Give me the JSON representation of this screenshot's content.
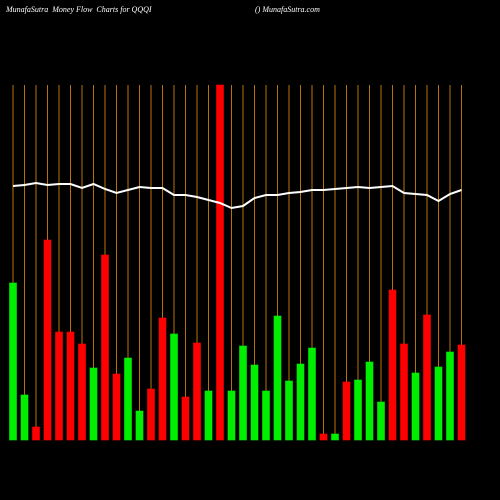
{
  "chart_data": {
    "type": "bar",
    "title": "MunafaSutra  Money Flow  Charts for QQQI",
    "subtitle": "() MunafaSutra.com",
    "ylim": [
      0,
      355
    ],
    "values": [
      157,
      45,
      13,
      200,
      108,
      108,
      96,
      72,
      185,
      66,
      82,
      29,
      51,
      122,
      106,
      43,
      97,
      49,
      355,
      49,
      94,
      75,
      49,
      124,
      59,
      76,
      92,
      6,
      6,
      58,
      60,
      78,
      38,
      150,
      96,
      67,
      125,
      73,
      88,
      95
    ],
    "colors": [
      "#00ee00",
      "#00ee00",
      "#ff0000",
      "#ff0000",
      "#ff0000",
      "#ff0000",
      "#ff0000",
      "#00ee00",
      "#ff0000",
      "#ff0000",
      "#00ee00",
      "#00ee00",
      "#ff0000",
      "#ff0000",
      "#00ee00",
      "#ff0000",
      "#ff0000",
      "#00ee00",
      "#ff0000",
      "#00ee00",
      "#00ee00",
      "#00ee00",
      "#00ee00",
      "#00ee00",
      "#00ee00",
      "#00ee00",
      "#00ee00",
      "#ff0000",
      "#00ee00",
      "#ff0000",
      "#00ee00",
      "#00ee00",
      "#00ee00",
      "#ff0000",
      "#ff0000",
      "#00ee00",
      "#ff0000",
      "#00ee00",
      "#00ee00",
      "#ff0000"
    ],
    "line": {
      "color": "#ffffff",
      "values": [
        254,
        255,
        257,
        255,
        256,
        256,
        252,
        256,
        251,
        247,
        250,
        253,
        252,
        252,
        245,
        245,
        243,
        240,
        237,
        232,
        234,
        242,
        245,
        245,
        247,
        248,
        250,
        250,
        251,
        252,
        253,
        252,
        253,
        254,
        247,
        246,
        245,
        239,
        246,
        250
      ]
    },
    "grid_color": "#b8720a"
  }
}
